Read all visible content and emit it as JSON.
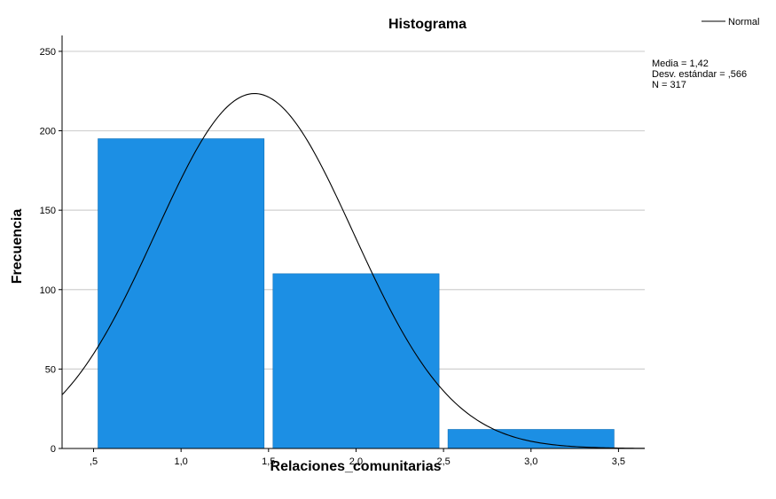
{
  "chart_data": {
    "type": "bar",
    "title": "Histograma",
    "xlabel": "Relaciones_comunitarias",
    "ylabel": "Frecuencia",
    "bins": [
      {
        "start": 0.5,
        "end": 1.5,
        "count": 195
      },
      {
        "start": 1.5,
        "end": 2.5,
        "count": 110
      },
      {
        "start": 2.5,
        "end": 3.5,
        "count": 12
      }
    ],
    "xlim": [
      0.32,
      3.65
    ],
    "ylim": [
      0,
      260
    ],
    "x_ticks": [
      {
        "value": 0.5,
        "label": ",5"
      },
      {
        "value": 1.0,
        "label": "1,0"
      },
      {
        "value": 1.5,
        "label": "1,5"
      },
      {
        "value": 2.0,
        "label": "2,0"
      },
      {
        "value": 2.5,
        "label": "2,5"
      },
      {
        "value": 3.0,
        "label": "3,0"
      },
      {
        "value": 3.5,
        "label": "3,5"
      }
    ],
    "y_ticks": [
      {
        "value": 0,
        "label": "0"
      },
      {
        "value": 50,
        "label": "50"
      },
      {
        "value": 100,
        "label": "100"
      },
      {
        "value": 150,
        "label": "150"
      },
      {
        "value": 200,
        "label": "200"
      },
      {
        "value": 250,
        "label": "250"
      }
    ],
    "grid": true,
    "normal_curve": {
      "legend_label": "Normal",
      "mean": 1.42,
      "sd": 0.566,
      "n": 317,
      "bin_width": 1.0
    },
    "stats": [
      "Media = 1,42",
      "Desv. estándar = ,566",
      "N = 317"
    ],
    "legend_position": "top-right",
    "colors": {
      "bar": "#1C8FE4",
      "bar_edge": "#0F6FB8",
      "curve": "#000000",
      "grid": "#D0D0D0",
      "axis": "#000000"
    }
  }
}
